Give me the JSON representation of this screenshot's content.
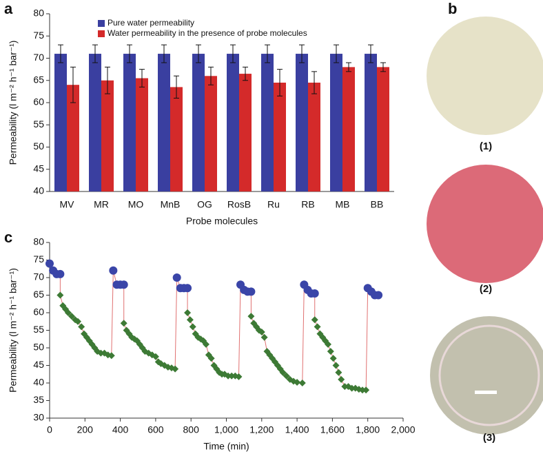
{
  "panels": [
    "a",
    "b",
    "c"
  ],
  "photos": [
    {
      "label": "(1)",
      "color": "#e6e2c8"
    },
    {
      "label": "(2)",
      "color": "#dc6a78"
    },
    {
      "label": "(3)",
      "color": "#c2c0ae"
    }
  ],
  "chart_data": [
    {
      "type": "bar",
      "xlabel": "Probe molecules",
      "ylabel": "Permeability (l m⁻² h⁻¹ bar⁻¹)",
      "categories": [
        "MV",
        "MR",
        "MO",
        "MnB",
        "OG",
        "RosB",
        "Ru",
        "RB",
        "MB",
        "BB"
      ],
      "series": [
        {
          "name": "Pure water permeability",
          "color": "#3a3fa0",
          "values": [
            71,
            71,
            71,
            71,
            71,
            71,
            71,
            71,
            71,
            71
          ],
          "errors": [
            2,
            2,
            2,
            2,
            2,
            2,
            2,
            2,
            2,
            2
          ]
        },
        {
          "name": "Water permeability in the presence of probe molecules",
          "color": "#d42a2a",
          "values": [
            64,
            65,
            65.5,
            63.5,
            66,
            66.5,
            64.5,
            64.5,
            68,
            68
          ],
          "errors": [
            4,
            3,
            2,
            2.5,
            2,
            1.5,
            3,
            2.5,
            1,
            1
          ]
        }
      ],
      "ylim": [
        40,
        80
      ],
      "yticks": [
        40,
        45,
        50,
        55,
        60,
        65,
        70,
        75,
        80
      ],
      "legend": "top-left"
    },
    {
      "type": "scatter",
      "xlabel": "Time (min)",
      "ylabel": "Permeability (l m⁻² h⁻¹ bar⁻¹)",
      "line_color": "#e07070",
      "xlim": [
        0,
        2000
      ],
      "xticks": [
        0,
        200,
        400,
        600,
        800,
        {
          "value": 1000,
          "label": "1,000"
        },
        {
          "value": 1200,
          "label": "1,200"
        },
        {
          "value": 1400,
          "label": "1,400"
        },
        {
          "value": 1600,
          "label": "1,600"
        },
        {
          "value": 1800,
          "label": "1,800"
        },
        {
          "value": 2000,
          "label": "2,000"
        }
      ],
      "ylim": [
        30,
        80
      ],
      "yticks": [
        30,
        35,
        40,
        45,
        50,
        55,
        60,
        65,
        70,
        75,
        80
      ],
      "series": [
        {
          "marker": "circle",
          "color": "#3a45a8",
          "x": [
            0,
            20,
            40,
            60
          ],
          "values": [
            74,
            72,
            71,
            71
          ]
        },
        {
          "marker": "diamond",
          "color": "#3d7a35",
          "x": [
            60,
            75,
            90,
            105,
            125,
            145,
            160,
            180,
            195,
            210,
            225,
            240,
            255,
            270,
            290,
            310,
            330,
            350
          ],
          "values": [
            65,
            62,
            61,
            60,
            59,
            58,
            57.5,
            56,
            54,
            53,
            52,
            51,
            50,
            49,
            48.5,
            48.5,
            48,
            47.8
          ]
        },
        {
          "marker": "circle",
          "color": "#3a45a8",
          "x": [
            360,
            380,
            400,
            420
          ],
          "values": [
            72,
            68,
            68,
            68
          ]
        },
        {
          "marker": "diamond",
          "color": "#3d7a35",
          "x": [
            420,
            435,
            450,
            465,
            480,
            495,
            510,
            525,
            540,
            560,
            580,
            600,
            615,
            630,
            650,
            670,
            690,
            710
          ],
          "values": [
            57,
            55,
            54,
            53,
            52.5,
            52,
            51,
            50,
            49,
            48.5,
            48,
            47.5,
            46,
            45.5,
            45,
            44.5,
            44.3,
            44
          ]
        },
        {
          "marker": "circle",
          "color": "#3a45a8",
          "x": [
            720,
            740,
            760,
            780
          ],
          "values": [
            70,
            67,
            67,
            67
          ]
        },
        {
          "marker": "diamond",
          "color": "#3d7a35",
          "x": [
            780,
            795,
            810,
            825,
            840,
            855,
            870,
            885,
            900,
            915,
            930,
            945,
            960,
            975,
            990,
            1010,
            1030,
            1050,
            1070
          ],
          "values": [
            60,
            58,
            56,
            54,
            53,
            52.5,
            52,
            51,
            48,
            47,
            45,
            44,
            43,
            42.5,
            42.5,
            42,
            42,
            42,
            41.8
          ]
        },
        {
          "marker": "circle",
          "color": "#3a45a8",
          "x": [
            1080,
            1100,
            1120,
            1140
          ],
          "values": [
            68,
            66.5,
            66,
            66
          ]
        },
        {
          "marker": "diamond",
          "color": "#3d7a35",
          "x": [
            1140,
            1155,
            1170,
            1185,
            1200,
            1215,
            1230,
            1245,
            1260,
            1275,
            1290,
            1305,
            1320,
            1340,
            1360,
            1380,
            1400,
            1430
          ],
          "values": [
            59,
            57,
            56,
            55,
            54.5,
            53,
            49,
            48,
            47,
            46,
            45,
            44,
            43,
            42,
            41,
            40.5,
            40.2,
            40
          ]
        },
        {
          "marker": "circle",
          "color": "#3a45a8",
          "x": [
            1440,
            1460,
            1480,
            1500
          ],
          "values": [
            68,
            66.5,
            65.5,
            65.5
          ]
        },
        {
          "marker": "diamond",
          "color": "#3d7a35",
          "x": [
            1500,
            1515,
            1530,
            1545,
            1560,
            1575,
            1590,
            1605,
            1620,
            1635,
            1650,
            1670,
            1690,
            1710,
            1730,
            1750,
            1770,
            1790
          ],
          "values": [
            58,
            56,
            54,
            53,
            52,
            51,
            49,
            47,
            45,
            43,
            41,
            39,
            39,
            38.5,
            38.5,
            38.2,
            38,
            38
          ]
        },
        {
          "marker": "circle",
          "color": "#3a45a8",
          "x": [
            1800,
            1820,
            1840,
            1860
          ],
          "values": [
            67,
            66,
            65,
            65
          ]
        }
      ]
    }
  ]
}
